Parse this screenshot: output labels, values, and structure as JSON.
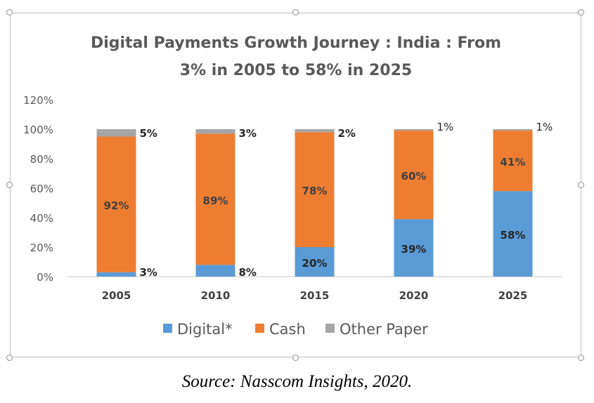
{
  "chart_data": {
    "type": "bar",
    "stacked": true,
    "title": [
      "Digital Payments Growth Journey : India : From",
      "3% in 2005 to 58% in 2025"
    ],
    "categories": [
      "2005",
      "2010",
      "2015",
      "2020",
      "2025"
    ],
    "series": [
      {
        "name": "Digital*",
        "values": [
          3,
          8,
          20,
          39,
          58
        ],
        "color": "#5b9bd5",
        "labels": [
          "3%",
          "8%",
          "20%",
          "39%",
          "58%"
        ]
      },
      {
        "name": "Cash",
        "values": [
          92,
          89,
          78,
          60,
          41
        ],
        "color": "#ed7d31",
        "labels": [
          "92%",
          "89%",
          "78%",
          "60%",
          "41%"
        ]
      },
      {
        "name": "Other Paper",
        "values": [
          5,
          3,
          2,
          1,
          1
        ],
        "color": "#a5a5a5",
        "labels": [
          "5%",
          "3%",
          "2%",
          "1%",
          "1%"
        ]
      }
    ],
    "ylim": [
      0,
      120
    ],
    "yticks": [
      0,
      20,
      40,
      60,
      80,
      100,
      120
    ],
    "ytick_labels": [
      "0%",
      "20%",
      "40%",
      "60%",
      "80%",
      "100%",
      "120%"
    ],
    "grid": false,
    "legend": "bottom"
  },
  "caption": "Source: Nasscom Insights, 2020."
}
